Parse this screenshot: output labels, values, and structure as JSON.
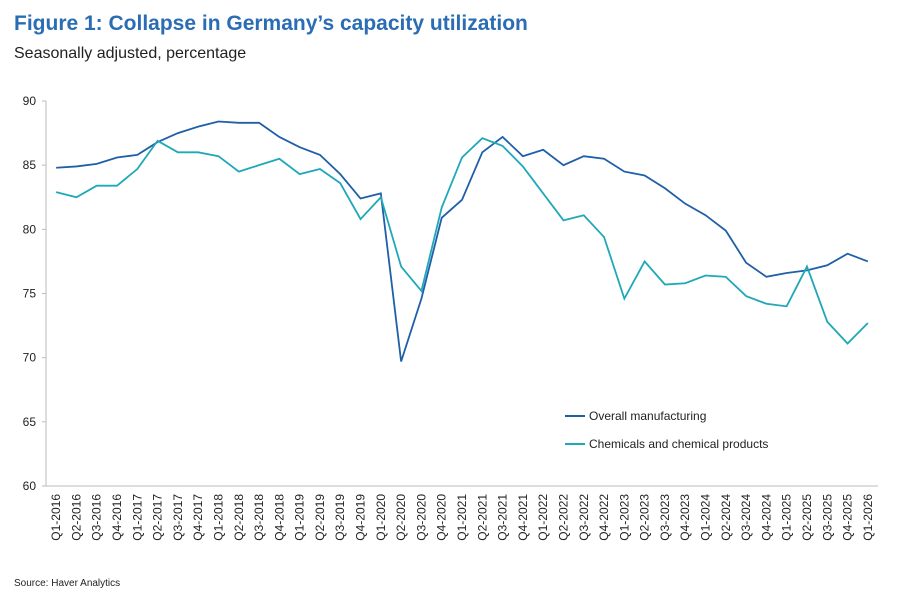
{
  "chart_data": {
    "type": "line",
    "title": "Figure 1: Collapse in Germany’s capacity utilization",
    "subtitle": "Seasonally adjusted, percentage",
    "source": "Source: Haver Analytics",
    "categories": [
      "Q1-2016",
      "Q2-2016",
      "Q3-2016",
      "Q4-2016",
      "Q1-2017",
      "Q2-2017",
      "Q3-2017",
      "Q4-2017",
      "Q1-2018",
      "Q2-2018",
      "Q3-2018",
      "Q4-2018",
      "Q1-2019",
      "Q2-2019",
      "Q3-2019",
      "Q4-2019",
      "Q1-2020",
      "Q2-2020",
      "Q3-2020",
      "Q4-2020",
      "Q1-2021",
      "Q2-2021",
      "Q3-2021",
      "Q4-2021",
      "Q1-2022",
      "Q2-2022",
      "Q3-2022",
      "Q4-2022",
      "Q1-2023",
      "Q2-2023",
      "Q3-2023",
      "Q4-2023",
      "Q1-2024",
      "Q2-2024",
      "Q3-2024",
      "Q4-2024",
      "Q1-2025",
      "Q2-2025",
      "Q3-2025",
      "Q4-2025",
      "Q1-2026"
    ],
    "series": [
      {
        "name": "Overall manufacturing",
        "color": "#1f5fa8",
        "values": [
          84.8,
          84.9,
          85.1,
          85.6,
          85.8,
          86.8,
          87.5,
          88.0,
          88.4,
          88.3,
          88.3,
          87.2,
          86.4,
          85.8,
          84.3,
          82.4,
          82.8,
          69.7,
          74.6,
          80.9,
          82.3,
          86.0,
          87.2,
          85.7,
          86.2,
          85.0,
          85.7,
          85.5,
          84.5,
          84.2,
          83.2,
          82.0,
          81.1,
          79.9,
          77.4,
          76.3,
          76.6,
          76.8,
          77.2,
          78.1,
          77.5
        ]
      },
      {
        "name": "Chemicals and chemical products",
        "color": "#1fa8b8",
        "values": [
          82.9,
          82.5,
          83.4,
          83.4,
          84.7,
          86.9,
          86.0,
          86.0,
          85.7,
          84.5,
          85.0,
          85.5,
          84.3,
          84.7,
          83.6,
          80.8,
          82.5,
          77.1,
          75.2,
          81.7,
          85.6,
          87.1,
          86.5,
          84.9,
          82.8,
          80.7,
          81.1,
          79.4,
          74.6,
          77.5,
          75.7,
          75.8,
          76.4,
          76.3,
          74.8,
          74.2,
          74.0,
          77.1,
          72.8,
          71.1,
          72.7
        ]
      }
    ],
    "ylim": [
      60,
      90
    ],
    "yticks": [
      60,
      65,
      70,
      75,
      80,
      85,
      90
    ]
  }
}
